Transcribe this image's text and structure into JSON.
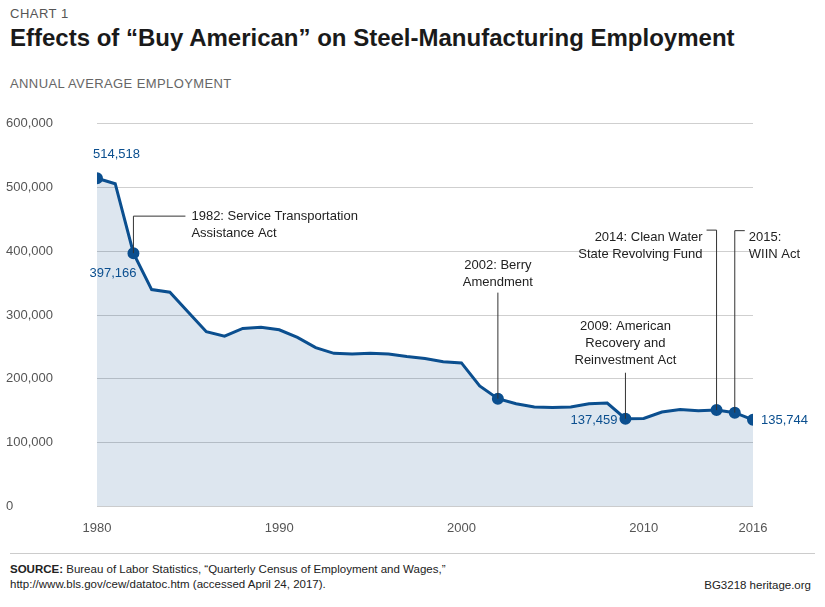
{
  "chart_data": {
    "type": "line",
    "label": "CHART 1",
    "title": "Effects of “Buy American” on Steel-Manufacturing Employment",
    "subtitle": "ANNUAL AVERAGE EMPLOYMENT",
    "x": [
      1980,
      1981,
      1982,
      1983,
      1984,
      1985,
      1986,
      1987,
      1988,
      1989,
      1990,
      1991,
      1992,
      1993,
      1994,
      1995,
      1996,
      1997,
      1998,
      1999,
      2000,
      2001,
      2002,
      2003,
      2004,
      2005,
      2006,
      2007,
      2008,
      2009,
      2010,
      2011,
      2012,
      2013,
      2014,
      2015,
      2016
    ],
    "values": [
      514518,
      506000,
      397166,
      340000,
      336000,
      305000,
      274000,
      267000,
      279000,
      281000,
      277000,
      265000,
      249000,
      240000,
      239000,
      240000,
      239000,
      235000,
      232000,
      227000,
      225000,
      189000,
      169000,
      161000,
      156000,
      155000,
      156000,
      161000,
      162000,
      137459,
      138000,
      148000,
      152000,
      150000,
      151000,
      147000,
      135744
    ],
    "value_labels": [
      "514,518",
      null,
      "397,166",
      null,
      null,
      null,
      null,
      null,
      null,
      null,
      null,
      null,
      null,
      null,
      null,
      null,
      null,
      null,
      null,
      null,
      null,
      null,
      null,
      null,
      null,
      null,
      null,
      null,
      null,
      "137,459",
      null,
      null,
      null,
      null,
      null,
      null,
      "135,744"
    ],
    "color": "#0b4f8f",
    "marker": "circle",
    "xlim": [
      1980,
      2016
    ],
    "xticks": [
      1980,
      1990,
      2000,
      2010,
      2016
    ],
    "ylim": [
      0,
      600000
    ],
    "yticks": [
      0,
      {
        "value": 100000,
        "label": "100,000"
      },
      {
        "value": 200000,
        "label": "200,000"
      },
      {
        "value": 300000,
        "label": "300,000"
      },
      {
        "value": 400000,
        "label": "400,000"
      },
      {
        "value": 500000,
        "label": "500,000"
      },
      {
        "value": 600000,
        "label": "600,000"
      }
    ],
    "grid": true,
    "annotations": [
      {
        "x": 1982,
        "lines": [
          "1982: Service Transportation",
          "Assistance Act"
        ]
      },
      {
        "x": 2002,
        "lines": [
          "2002: Berry",
          "Amendment"
        ]
      },
      {
        "x": 2009,
        "lines": [
          "2009: American",
          "Recovery and",
          "Reinvestment Act"
        ]
      },
      {
        "x": 2014,
        "lines": [
          "2014: Clean Water",
          "State Revolving Fund"
        ]
      },
      {
        "x": 2015,
        "lines": [
          "2015:",
          "WIIN Act"
        ]
      }
    ],
    "source": {
      "label": "SOURCE:",
      "lines": [
        "Bureau of Labor Statistics, “Quarterly Census of Employment and Wages,”",
        "http://www.bls.gov/cew/datatoc.htm (accessed April 24, 2017)."
      ]
    },
    "code": "BG3218",
    "publisher": "heritage.org"
  }
}
